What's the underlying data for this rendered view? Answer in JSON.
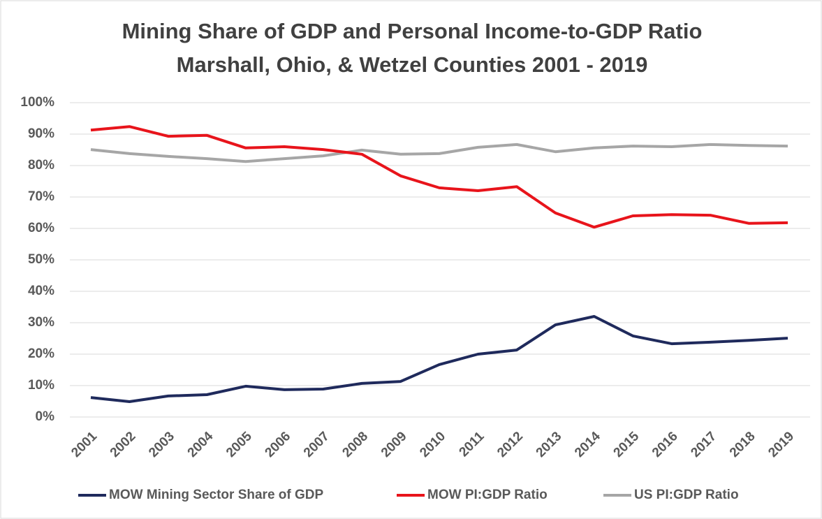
{
  "chart_data": {
    "type": "line",
    "title": "Mining Share of GDP and Personal Income-to-GDP Ratio",
    "subtitle": "Marshall, Ohio, & Wetzel Counties 2001 - 2019",
    "categories": [
      "2001",
      "2002",
      "2003",
      "2004",
      "2005",
      "2006",
      "2007",
      "2008",
      "2009",
      "2010",
      "2011",
      "2012",
      "2013",
      "2014",
      "2015",
      "2016",
      "2017",
      "2018",
      "2019"
    ],
    "series": [
      {
        "name": "MOW Mining Sector Share of GDP",
        "color": "#1f2a5c",
        "values": [
          6.2,
          4.9,
          6.7,
          7.1,
          9.8,
          8.7,
          8.9,
          10.7,
          11.3,
          16.7,
          20,
          21.3,
          29.3,
          32,
          25.8,
          23.3,
          23.8,
          24.4,
          25.1
        ]
      },
      {
        "name": "MOW PI:GDP Ratio",
        "color": "#e8141b",
        "values": [
          91.3,
          92.4,
          89.3,
          89.6,
          85.6,
          86,
          85.1,
          83.6,
          76.7,
          72.9,
          72,
          73.3,
          64.9,
          60.4,
          64,
          64.4,
          64.2,
          61.6,
          61.8
        ]
      },
      {
        "name": "US PI:GDP Ratio",
        "color": "#a6a6a6",
        "values": [
          85.1,
          83.8,
          82.9,
          82.2,
          81.3,
          82.2,
          83.1,
          84.9,
          83.6,
          83.8,
          85.8,
          86.7,
          84.4,
          85.6,
          86.2,
          86,
          86.7,
          86.4,
          86.2
        ]
      }
    ],
    "ylim": [
      0,
      100
    ],
    "yticks": [
      {
        "value": 0,
        "label": "0%"
      },
      {
        "value": 10,
        "label": "10%"
      },
      {
        "value": 20,
        "label": "20%"
      },
      {
        "value": 30,
        "label": "30%"
      },
      {
        "value": 40,
        "label": "40%"
      },
      {
        "value": 50,
        "label": "50%"
      },
      {
        "value": 60,
        "label": "60%"
      },
      {
        "value": 70,
        "label": "70%"
      },
      {
        "value": 80,
        "label": "80%"
      },
      {
        "value": 90,
        "label": "90%"
      },
      {
        "value": 100,
        "label": "100%"
      }
    ],
    "grid": true,
    "legend": "bottom"
  }
}
